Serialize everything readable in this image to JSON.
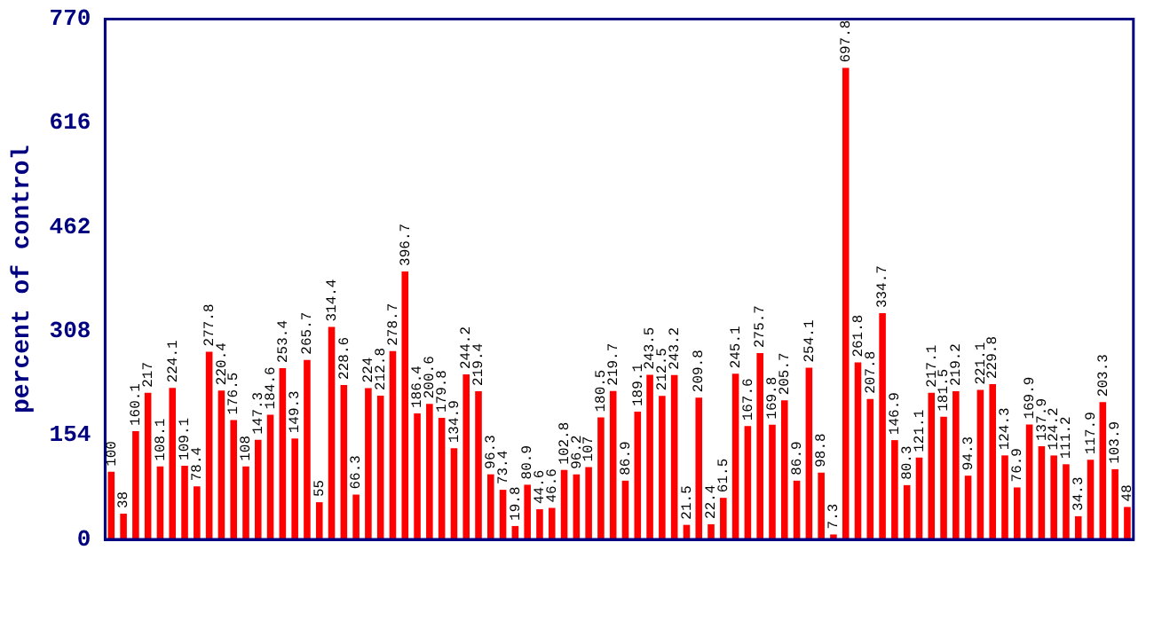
{
  "chart_data": {
    "type": "bar",
    "ylabel": "percent of control",
    "categories": [
      null,
      null,
      null,
      null,
      null,
      null,
      null,
      null,
      null,
      null,
      null,
      null,
      null,
      null,
      null,
      null,
      null,
      null,
      null,
      null,
      null,
      null,
      null,
      null,
      null,
      null,
      null,
      null,
      null,
      null,
      null,
      null,
      null,
      null,
      null,
      null,
      null,
      null,
      null,
      null,
      null,
      null,
      null,
      null,
      null,
      null,
      null,
      null,
      null,
      null,
      null,
      null,
      null,
      null,
      null,
      null,
      null,
      null,
      null,
      null,
      null,
      null,
      null,
      null,
      null,
      null,
      null,
      null,
      null,
      null,
      null,
      null,
      null,
      null,
      null,
      null,
      null,
      null,
      null,
      null,
      null,
      null,
      null,
      null
    ],
    "values": [
      100,
      38,
      160.1,
      217,
      108.1,
      224.1,
      109.1,
      78.4,
      277.8,
      220.4,
      176.5,
      108,
      147.3,
      184.6,
      253.4,
      149.3,
      265.7,
      55,
      314.4,
      228.6,
      66.3,
      224,
      212.8,
      278.7,
      396.7,
      186.4,
      200.6,
      179.8,
      134.9,
      244.2,
      219.4,
      96.3,
      73.4,
      19.8,
      80.9,
      44.6,
      46.6,
      102.8,
      96.2,
      107,
      180.5,
      219.7,
      86.9,
      189.1,
      243.5,
      212.5,
      243.2,
      21.5,
      209.8,
      22.4,
      61.5,
      245.1,
      167.6,
      275.7,
      169.8,
      205.7,
      86.9,
      254.1,
      98.8,
      7.3,
      697.8,
      261.8,
      207.8,
      334.7,
      146.9,
      80.3,
      121.1,
      217.1,
      181.5,
      219.2,
      94.3,
      221.1,
      229.8,
      124.3,
      76.9,
      169.9,
      137.9,
      124.2,
      111.2,
      34.3,
      117.9,
      203.3,
      103.9,
      48
    ],
    "color": "#ff0000",
    "ylim": [
      0,
      770
    ],
    "yticks": [
      0,
      154,
      308,
      462,
      616,
      770
    ],
    "data_labels": true,
    "grid": false,
    "legend": false
  }
}
